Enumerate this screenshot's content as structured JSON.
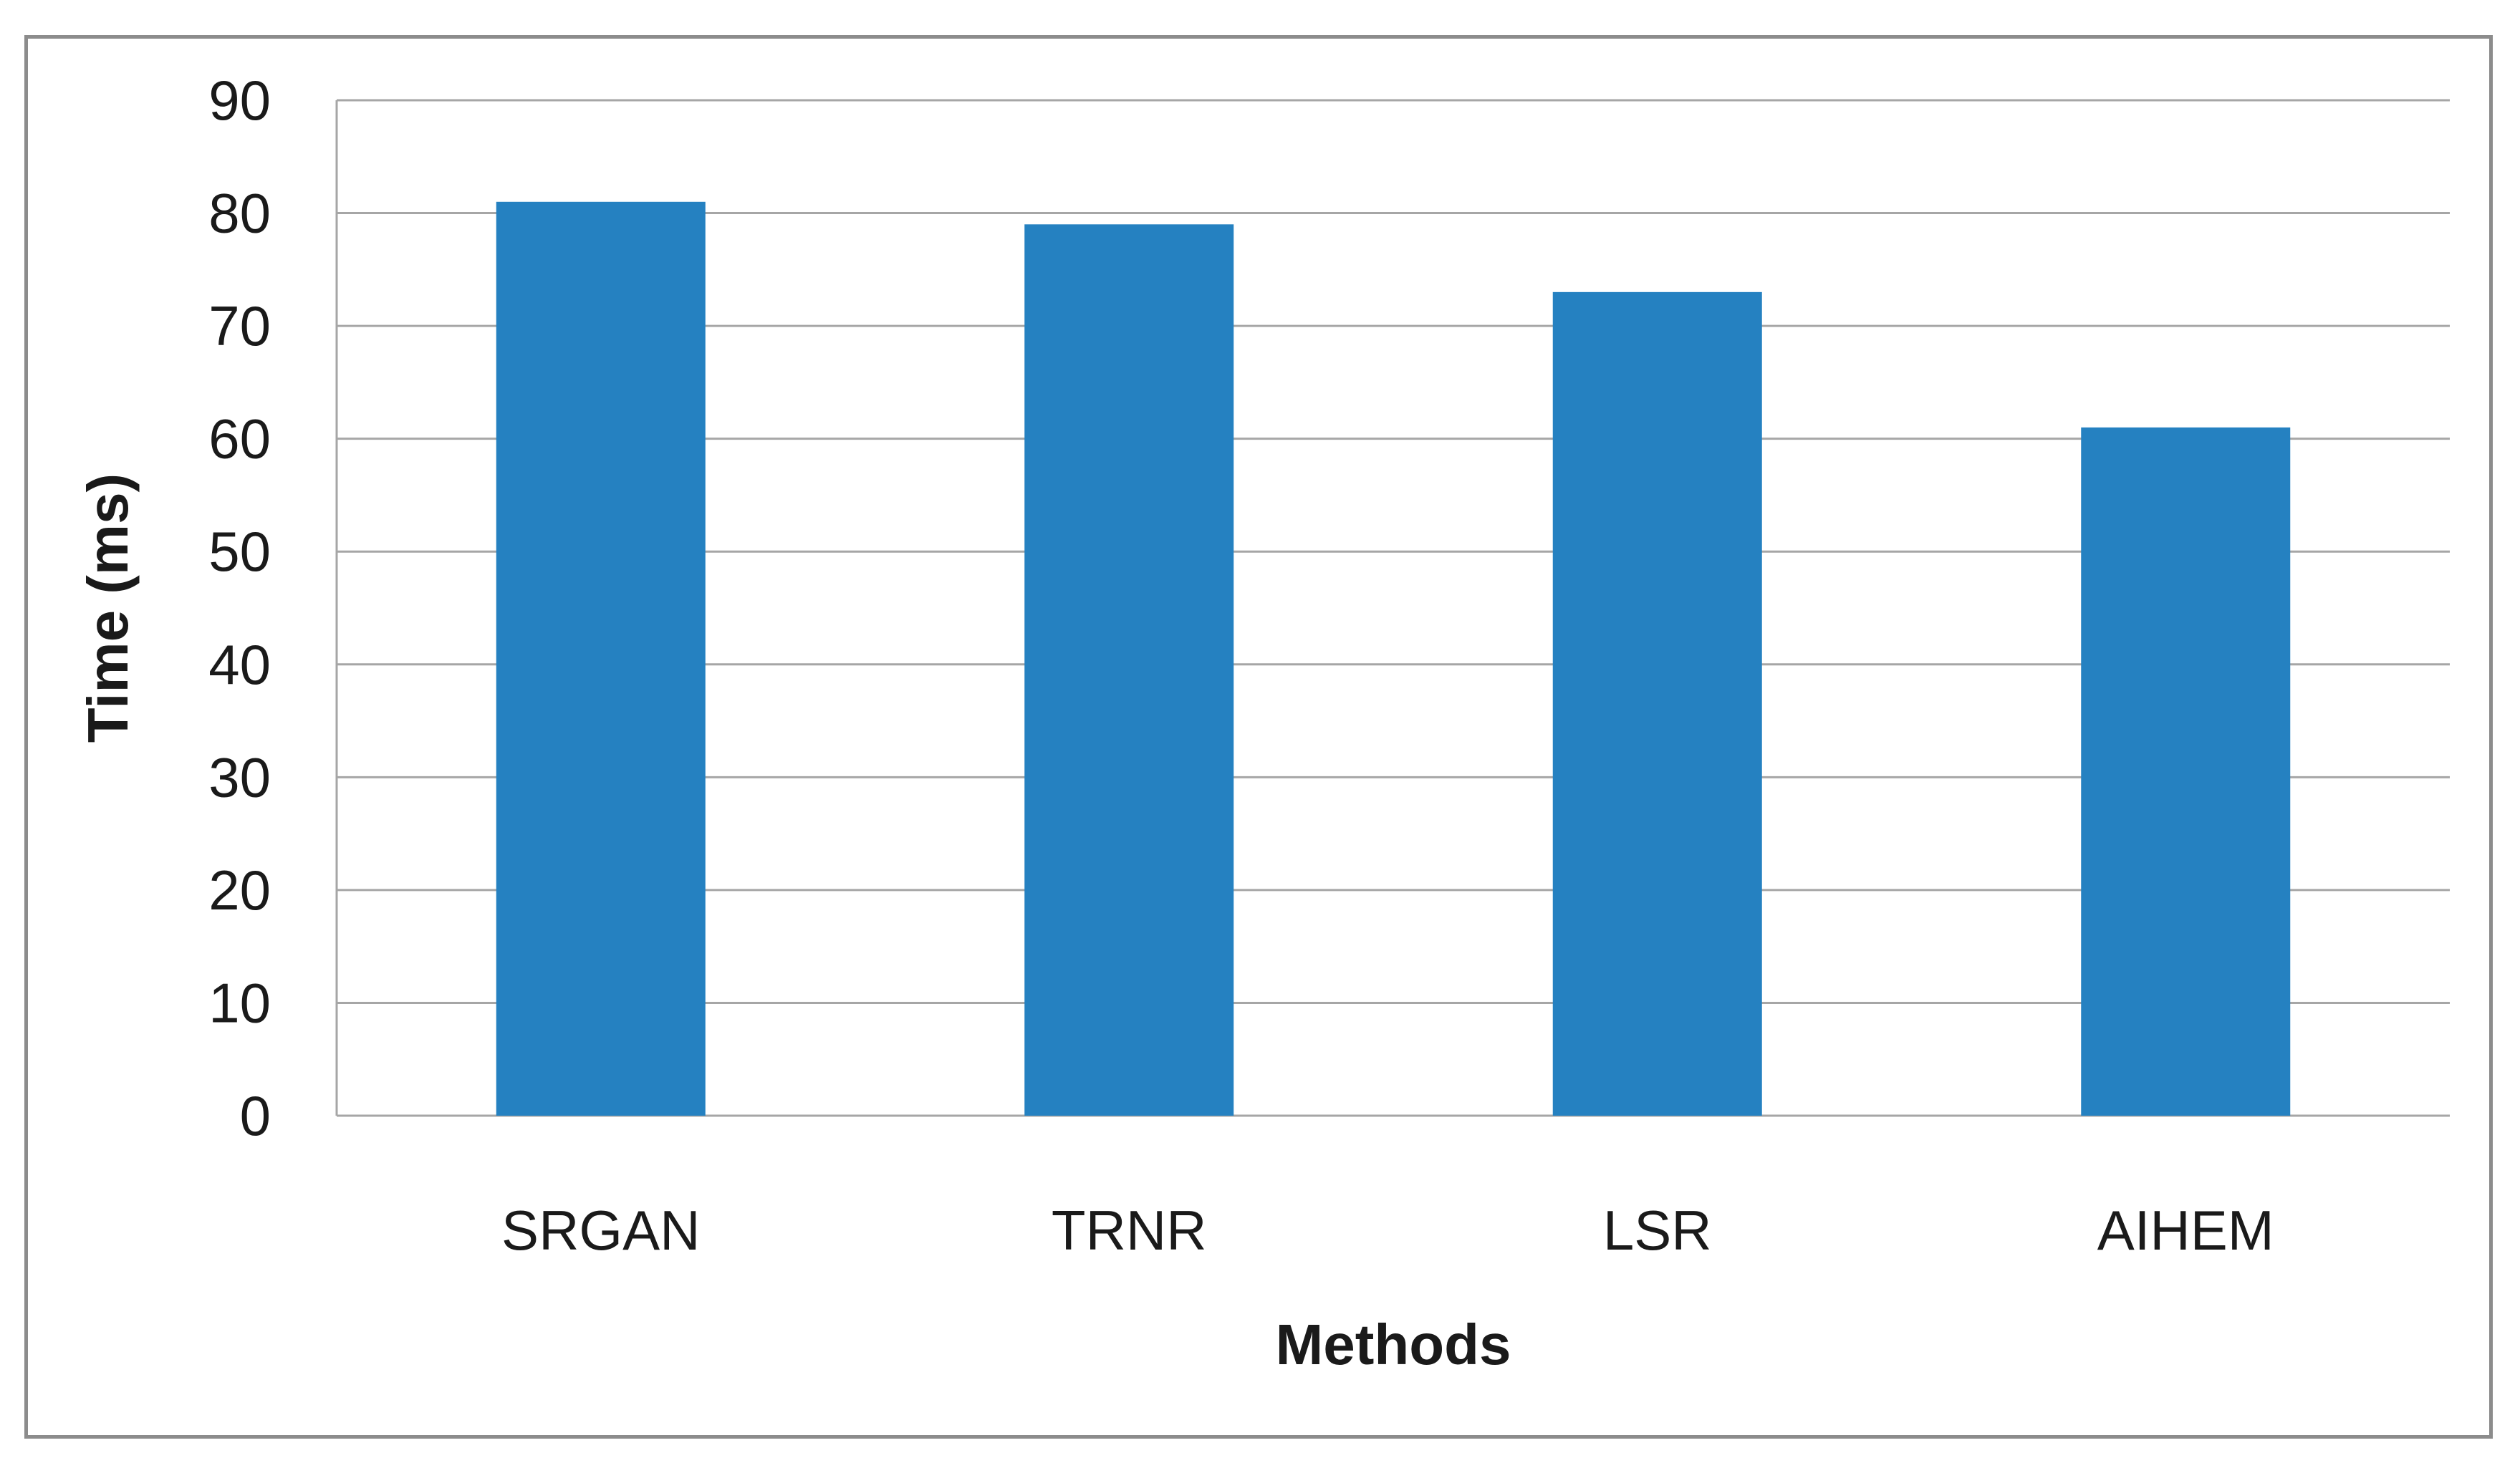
{
  "chart_data": {
    "type": "bar",
    "categories": [
      "SRGAN",
      "TRNR",
      "LSR",
      "AIHEM"
    ],
    "values": [
      81,
      79,
      73,
      61
    ],
    "title": "",
    "xlabel": "Methods",
    "ylabel": "Time (ms)",
    "ylim": [
      0,
      90
    ],
    "yticks": [
      0,
      10,
      20,
      30,
      40,
      50,
      60,
      70,
      80,
      90
    ],
    "grid": true,
    "legend": "none",
    "bar_color": "#2581c1",
    "grid_color": "#a6a6a6"
  }
}
